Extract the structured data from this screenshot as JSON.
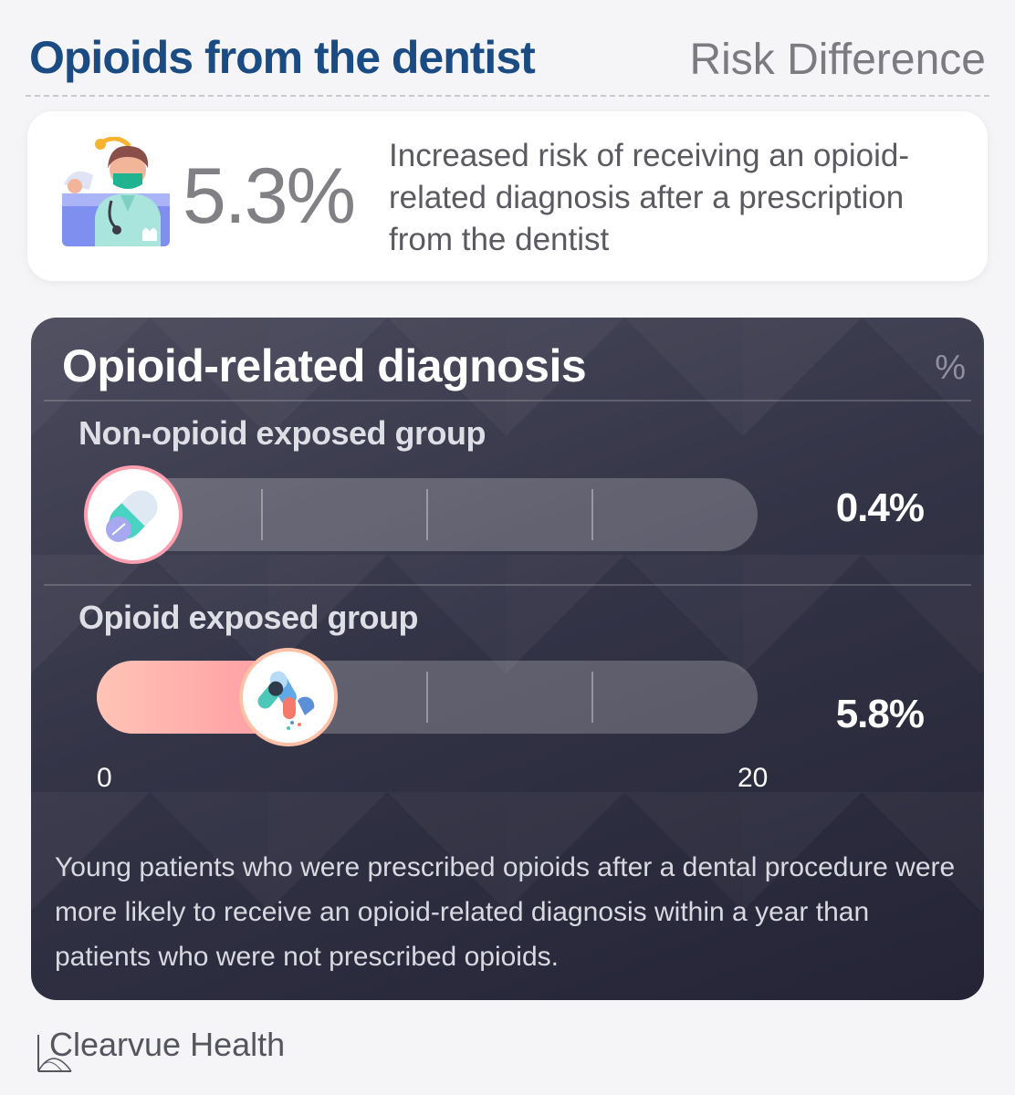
{
  "header": {
    "title": "Opioids from the dentist",
    "subtitle": "Risk Difference"
  },
  "summary": {
    "stat": "5.3%",
    "description": "Increased risk of receiving an opioid-related diagnosis after a prescription from the dentist"
  },
  "chart_data": {
    "type": "bar",
    "title": "Opioid-related diagnosis",
    "unit": "%",
    "xlim": [
      0,
      20
    ],
    "axis_min_label": "0",
    "axis_max_label": "20",
    "series": [
      {
        "name": "Non-opioid exposed group",
        "value": 0.4,
        "value_label": "0.4%"
      },
      {
        "name": "Opioid exposed group",
        "value": 5.8,
        "value_label": "5.8%"
      }
    ]
  },
  "note": "Young patients who were prescribed opioids after a dental procedure were more likely to receive an opioid-related diagnosis within a year than patients who were not prescribed opioids.",
  "brand": {
    "name": "Clearvue Health"
  },
  "colors": {
    "title": "#1a4b82",
    "accent": "#ff9aa2",
    "card_dark": "#2e2e40"
  }
}
